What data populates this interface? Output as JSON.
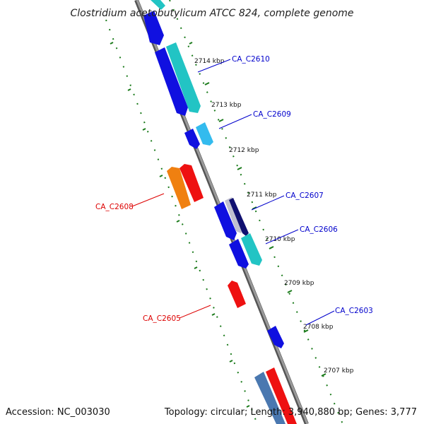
{
  "title": "Clostridium acetobutylicum ATCC 824, complete genome",
  "accession": "Accession: NC_003030",
  "topology": "Topology: circular; Length: 3,940,880 bp; Genes: 3,777",
  "colors": {
    "backbone": "#808080",
    "backbone_edge": "#555555",
    "tick_dots": "#1a7a1a",
    "label_forward": "#0000cc",
    "label_reverse": "#dd0000",
    "gene_blue": "#1010e0",
    "gene_cyan": "#22c4c4",
    "gene_light_blue": "#33bbee",
    "gene_navy": "#101070",
    "gene_red": "#ee1111",
    "gene_orange": "#f08010",
    "gene_steel": "#4a78b0",
    "gene_grey": "#c0c0d0"
  },
  "scale_labels": [
    {
      "text": "2714 kbp"
    },
    {
      "text": "2713 kbp"
    },
    {
      "text": "2712 kbp"
    },
    {
      "text": "2711 kbp"
    },
    {
      "text": "2710 kbp"
    },
    {
      "text": "2709 kbp"
    },
    {
      "text": "2708 kbp"
    },
    {
      "text": "2707 kbp"
    }
  ],
  "gene_labels": [
    {
      "text": "CA_C2610",
      "strand": "forward"
    },
    {
      "text": "CA_C2609",
      "strand": "forward"
    },
    {
      "text": "CA_C2607",
      "strand": "forward"
    },
    {
      "text": "CA_C2606",
      "strand": "forward"
    },
    {
      "text": "CA_C2603",
      "strand": "forward"
    },
    {
      "text": "CA_C2608",
      "strand": "reverse"
    },
    {
      "text": "CA_C2605",
      "strand": "reverse"
    }
  ]
}
